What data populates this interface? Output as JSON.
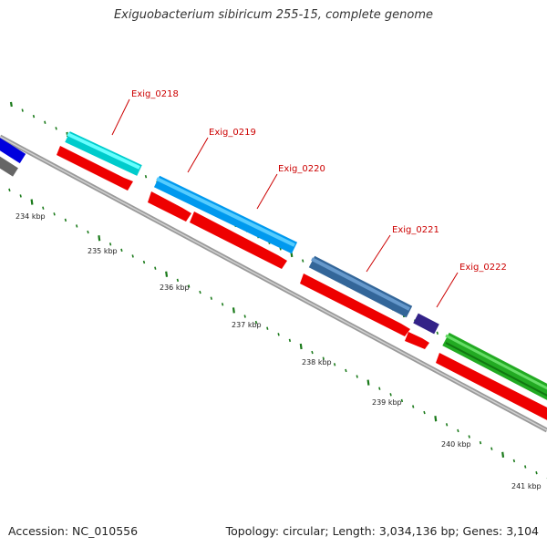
{
  "title": "Exiguobacterium sibiricum 255-15, complete genome",
  "footer": {
    "accession": "Accession: NC_010556",
    "summary": "Topology: circular; Length: 3,034,136 bp; Genes: 3,104"
  },
  "genes": [
    {
      "label": "Exig_0218"
    },
    {
      "label": "Exig_0219"
    },
    {
      "label": "Exig_0220"
    },
    {
      "label": "Exig_0221"
    },
    {
      "label": "Exig_0222"
    }
  ],
  "kbp_ticks": [
    "234 kbp",
    "235 kbp",
    "236 kbp",
    "237 kbp",
    "238 kbp",
    "239 kbp",
    "240 kbp",
    "241 kbp"
  ],
  "colors": {
    "label_red": "#cc0000",
    "feature_red": "#ee0000",
    "backbone": "#8a8a8a",
    "tick_green": "#1a7a1a"
  }
}
